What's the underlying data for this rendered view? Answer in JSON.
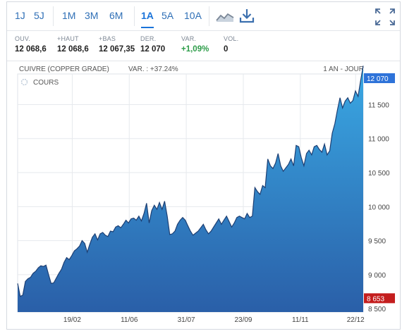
{
  "toolbar": {
    "periods": [
      "1J",
      "5J",
      "1M",
      "3M",
      "6M",
      "1A",
      "5A",
      "10A"
    ],
    "active_period": "1A",
    "chart_type_icon": "area-chart-icon",
    "download_icon": "download-icon",
    "fullscreen_icon": "expand-icon"
  },
  "stats": [
    {
      "label": "OUV.",
      "value": "12 068,6"
    },
    {
      "label": "+HAUT",
      "value": "12 068,6"
    },
    {
      "label": "+BAS",
      "value": "12 067,35"
    },
    {
      "label": "DER.",
      "value": "12 070"
    },
    {
      "label": "VAR.",
      "value": "+1,09%"
    },
    {
      "label": "VOL.",
      "value": "0"
    }
  ],
  "chart_header": {
    "instrument": "CUIVRE (COPPER GRADE)",
    "variation": "VAR. : +37.24%",
    "range": "1 AN - JOUR"
  },
  "colors": {
    "area_top": "#3aa9e4",
    "area_bottom": "#2a5fa8",
    "line": "#1d3f73",
    "last_badge": "#2e73d9",
    "low_badge": "#c41e1e",
    "positive": "#2e9d4a"
  },
  "chart_data": {
    "type": "area",
    "legend": "COURS",
    "x_ticks": [
      "19/02",
      "11/06",
      "31/07",
      "23/09",
      "11/11",
      "22/12"
    ],
    "y_ticks": [
      8500,
      9000,
      9500,
      10000,
      10500,
      11000,
      11500
    ],
    "y_tick_labels": [
      "8 500",
      "9 000",
      "9 500",
      "10 000",
      "10 500",
      "11 000",
      "11 500"
    ],
    "ylim": [
      8450,
      11950
    ],
    "last_value": 12070,
    "last_label": "12 070",
    "low_value": 8653,
    "low_label": "8 653",
    "grid": true,
    "values": [
      8870,
      8680,
      8700,
      8900,
      8940,
      8960,
      9020,
      9050,
      9100,
      9130,
      9120,
      9140,
      9000,
      8870,
      8880,
      8950,
      9020,
      9080,
      9180,
      9250,
      9220,
      9280,
      9350,
      9380,
      9420,
      9500,
      9460,
      9330,
      9450,
      9550,
      9600,
      9510,
      9600,
      9620,
      9580,
      9560,
      9640,
      9630,
      9700,
      9720,
      9690,
      9740,
      9800,
      9760,
      9820,
      9830,
      9800,
      9860,
      9790,
      9900,
      10050,
      9760,
      9940,
      10020,
      9960,
      10060,
      9960,
      10080,
      9860,
      9590,
      9600,
      9640,
      9740,
      9800,
      9840,
      9800,
      9720,
      9640,
      9580,
      9610,
      9640,
      9690,
      9740,
      9660,
      9600,
      9640,
      9700,
      9760,
      9820,
      9740,
      9800,
      9860,
      9780,
      9700,
      9760,
      9840,
      9860,
      9840,
      9820,
      9900,
      9840,
      9860,
      10280,
      10220,
      10180,
      10310,
      10280,
      10700,
      10600,
      10560,
      10640,
      10780,
      10600,
      10520,
      10570,
      10620,
      10700,
      10600,
      10900,
      10880,
      10720,
      10600,
      10780,
      10830,
      10760,
      10880,
      10900,
      10840,
      10800,
      10920,
      10760,
      10820,
      11080,
      11220,
      11420,
      11600,
      11450,
      11550,
      11600,
      11520,
      11560,
      11700,
      11620,
      11850,
      12070
    ]
  }
}
